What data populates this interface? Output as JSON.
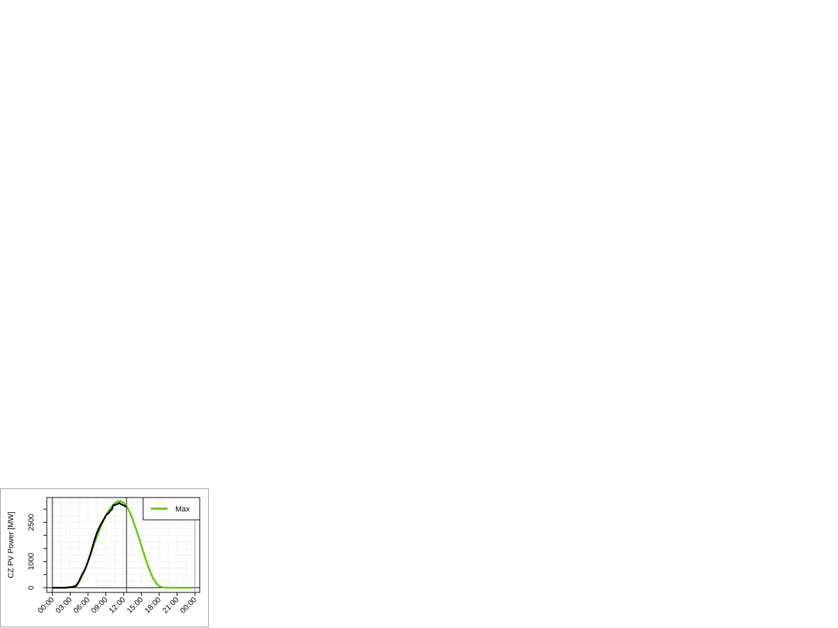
{
  "chart_data": {
    "type": "line",
    "title": "",
    "xlabel": "",
    "ylabel": "CZ PV Power [MW]",
    "xlim_hours": [
      0,
      24
    ],
    "ylim": [
      0,
      3400
    ],
    "x_tick_labels": [
      "00:00",
      "03:00",
      "06:00",
      "09:00",
      "12:00",
      "15:00",
      "18:00",
      "21:00",
      "00:00"
    ],
    "y_ticks": [
      0,
      500,
      1000,
      1500,
      2000,
      2500,
      3000
    ],
    "y_tick_labels": {
      "0": "0",
      "1000": "1000",
      "2500": "2500"
    },
    "grid": true,
    "vertical_lines_hours": [
      0,
      12.5
    ],
    "legend": {
      "position": "top-right",
      "entries": [
        {
          "name": "Max",
          "color": "#5ccc00"
        }
      ]
    },
    "series": [
      {
        "name": "Max",
        "color": "#5ccc00",
        "x": [
          0,
          1,
          2,
          3,
          3.5,
          4,
          4.5,
          5,
          5.5,
          6,
          6.5,
          7,
          7.5,
          8,
          8.5,
          9,
          9.5,
          10,
          10.5,
          11,
          11.5,
          12,
          12.5,
          13,
          13.5,
          14,
          14.5,
          15,
          15.5,
          16,
          16.5,
          17,
          17.5,
          18,
          18.5,
          19,
          20,
          21,
          22,
          23,
          23.3
        ],
        "y": [
          0,
          0,
          0,
          10,
          40,
          110,
          250,
          450,
          700,
          1000,
          1320,
          1650,
          1960,
          2250,
          2520,
          2750,
          2950,
          3100,
          3230,
          3300,
          3310,
          3250,
          3120,
          2900,
          2630,
          2300,
          1960,
          1600,
          1240,
          900,
          600,
          350,
          170,
          60,
          15,
          5,
          0,
          0,
          0,
          0,
          0
        ]
      },
      {
        "color": "#000000",
        "x": [
          0,
          1,
          2,
          3,
          3.5,
          4,
          4.25,
          4.5,
          5,
          5.5,
          6,
          6.5,
          7,
          7.5,
          8,
          8.5,
          9,
          9.25,
          9.5,
          9.75,
          10,
          10.25,
          10.5,
          11,
          11.25,
          11.5,
          12,
          12.25,
          12.5
        ],
        "y": [
          0,
          0,
          0,
          20,
          40,
          60,
          150,
          250,
          500,
          700,
          1000,
          1350,
          1750,
          2100,
          2350,
          2550,
          2750,
          2820,
          2850,
          2950,
          2980,
          3150,
          3160,
          3200,
          3240,
          3200,
          3150,
          3120,
          3080
        ]
      }
    ]
  }
}
